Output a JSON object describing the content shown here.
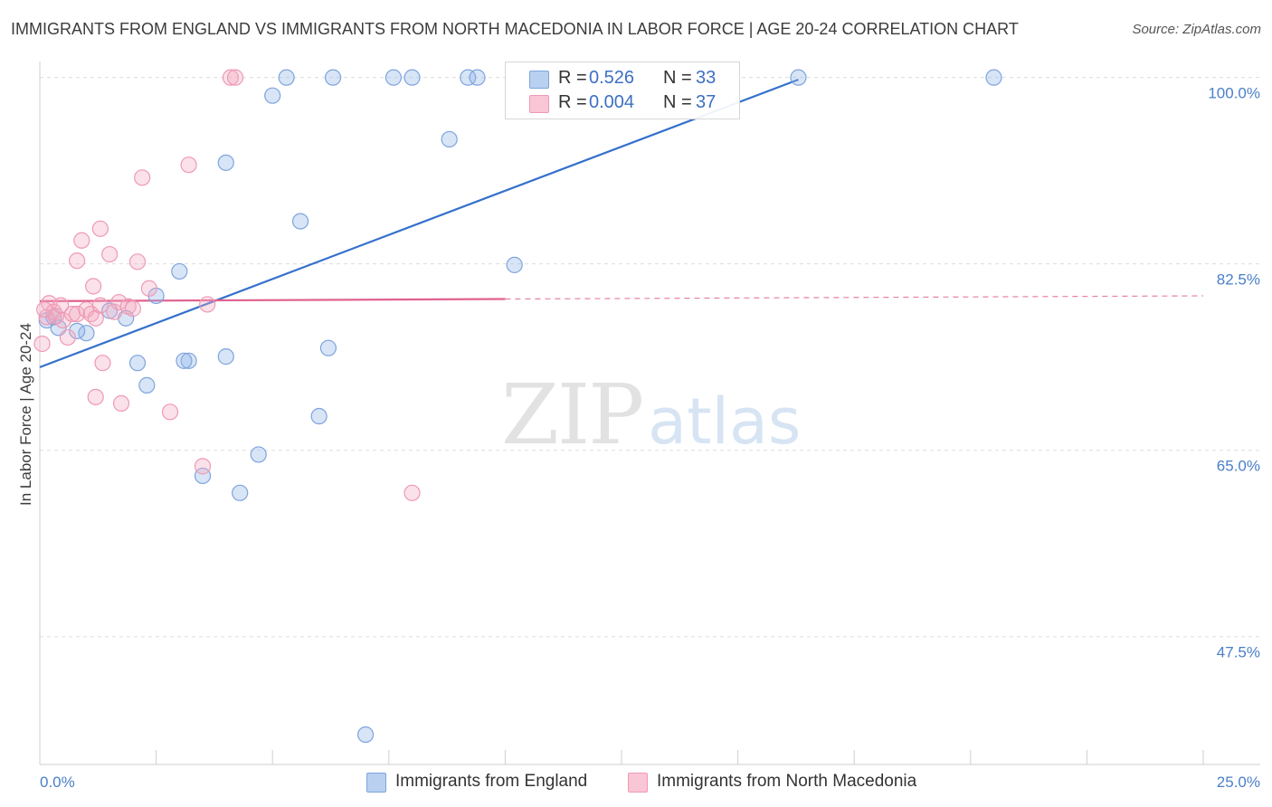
{
  "chart_data": {
    "type": "scatter",
    "title": "IMMIGRANTS FROM ENGLAND VS IMMIGRANTS FROM NORTH MACEDONIA IN LABOR FORCE | AGE 20-24 CORRELATION CHART",
    "source": "Source: ZipAtlas.com",
    "xlabel": "",
    "ylabel": "In Labor Force | Age 20-24",
    "xlim": [
      0,
      25
    ],
    "ylim": [
      35.5,
      101.5
    ],
    "x_tick_labels": [
      {
        "value": 0,
        "label": "0.0%"
      },
      {
        "value": 25,
        "label": "25.0%"
      }
    ],
    "y_tick_labels": [
      {
        "value": 47.5,
        "label": "47.5%"
      },
      {
        "value": 65.0,
        "label": "65.0%"
      },
      {
        "value": 82.5,
        "label": "82.5%"
      },
      {
        "value": 100.0,
        "label": "100.0%"
      }
    ],
    "grid": true,
    "legend_position": "top-center",
    "series": [
      {
        "name": "Immigrants from England",
        "color": "#8fb4e8",
        "line_color": "#3470cc",
        "r_label": "R =",
        "r": "0.526",
        "n_label": "N =",
        "n": "33",
        "trend": {
          "x0": 0,
          "y0": 72.8,
          "x1": 16.3,
          "y1": 99.8,
          "dashed_to": null
        },
        "points": [
          [
            0.15,
            77.2
          ],
          [
            0.4,
            76.5
          ],
          [
            1.0,
            76.0
          ],
          [
            0.8,
            76.2
          ],
          [
            1.5,
            78.1
          ],
          [
            1.85,
            77.4
          ],
          [
            2.1,
            73.2
          ],
          [
            2.3,
            71.1
          ],
          [
            2.5,
            79.5
          ],
          [
            3.0,
            81.8
          ],
          [
            3.2,
            73.4
          ],
          [
            3.5,
            62.6
          ],
          [
            4.0,
            92.0
          ],
          [
            4.0,
            73.8
          ],
          [
            4.3,
            61.0
          ],
          [
            4.7,
            64.6
          ],
          [
            5.0,
            98.3
          ],
          [
            5.3,
            100.0
          ],
          [
            5.6,
            86.5
          ],
          [
            6.0,
            68.2
          ],
          [
            6.2,
            74.6
          ],
          [
            6.3,
            100.0
          ],
          [
            7.0,
            38.3
          ],
          [
            7.6,
            100.0
          ],
          [
            8.0,
            100.0
          ],
          [
            8.8,
            94.2
          ],
          [
            9.2,
            100.0
          ],
          [
            9.4,
            100.0
          ],
          [
            10.2,
            82.4
          ],
          [
            16.3,
            100.0
          ],
          [
            20.5,
            100.0
          ],
          [
            0.3,
            77.5
          ],
          [
            3.1,
            73.4
          ]
        ]
      },
      {
        "name": "Immigrants from North Macedonia",
        "color": "#f4a8c0",
        "line_color": "#e0618f",
        "r_label": "R =",
        "r": "0.004",
        "n_label": "N =",
        "n": "37",
        "trend": {
          "x0": 0,
          "y0": 79.0,
          "x1": 10.0,
          "y1": 79.2,
          "dashed_to": 25.0
        },
        "points": [
          [
            0.05,
            75.0
          ],
          [
            0.15,
            77.5
          ],
          [
            0.2,
            78.8
          ],
          [
            0.3,
            78.0
          ],
          [
            0.35,
            77.6
          ],
          [
            0.45,
            78.6
          ],
          [
            0.5,
            77.2
          ],
          [
            0.6,
            75.6
          ],
          [
            0.7,
            77.8
          ],
          [
            0.8,
            77.8
          ],
          [
            0.8,
            82.8
          ],
          [
            0.9,
            84.7
          ],
          [
            1.0,
            78.2
          ],
          [
            1.1,
            77.8
          ],
          [
            1.15,
            80.4
          ],
          [
            1.2,
            77.4
          ],
          [
            1.2,
            70.0
          ],
          [
            1.3,
            78.6
          ],
          [
            1.3,
            85.8
          ],
          [
            1.35,
            73.2
          ],
          [
            1.5,
            83.4
          ],
          [
            1.6,
            78.0
          ],
          [
            1.7,
            78.9
          ],
          [
            1.75,
            69.4
          ],
          [
            1.9,
            78.5
          ],
          [
            2.1,
            82.7
          ],
          [
            2.2,
            90.6
          ],
          [
            2.35,
            80.2
          ],
          [
            2.8,
            68.6
          ],
          [
            3.2,
            91.8
          ],
          [
            3.5,
            63.5
          ],
          [
            3.6,
            78.7
          ],
          [
            4.1,
            100.0
          ],
          [
            4.2,
            100.0
          ],
          [
            8.0,
            61.0
          ],
          [
            0.1,
            78.2
          ],
          [
            2.0,
            78.3
          ]
        ]
      }
    ],
    "watermark": {
      "zip": "ZIP",
      "atlas": "atlas"
    }
  }
}
